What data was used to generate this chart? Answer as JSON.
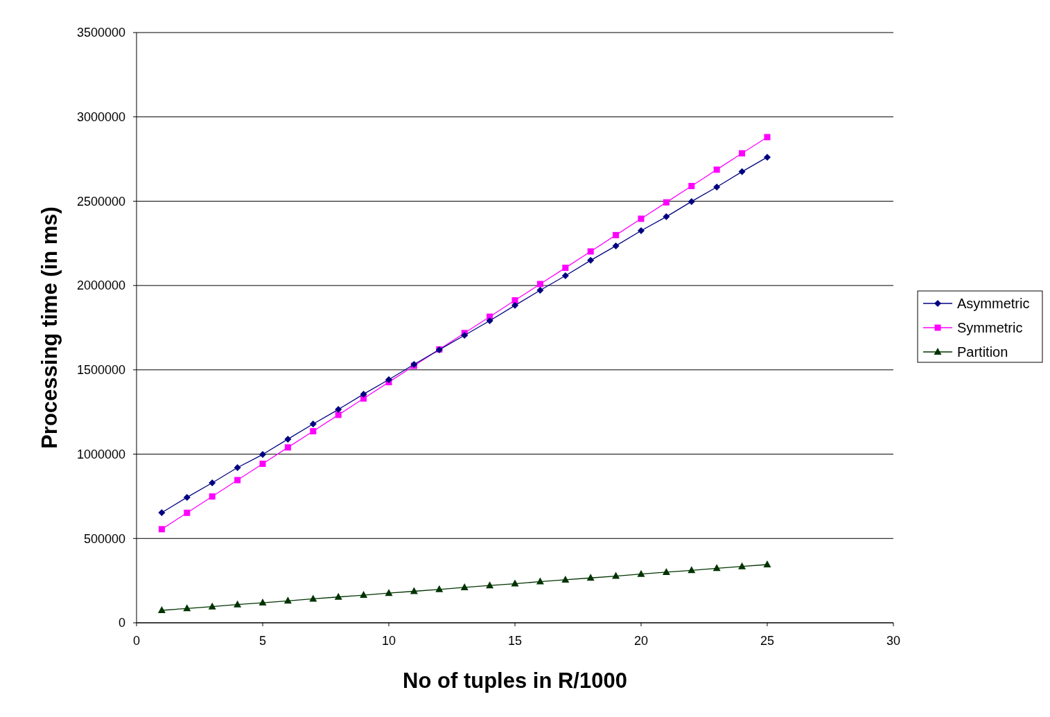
{
  "chart_data": {
    "type": "line",
    "xlabel": "No of tuples in R/1000",
    "ylabel": "Processing time (in ms)",
    "x": [
      1,
      2,
      3,
      4,
      5,
      6,
      7,
      8,
      9,
      10,
      11,
      12,
      13,
      14,
      15,
      16,
      17,
      18,
      19,
      20,
      21,
      22,
      23,
      24,
      25
    ],
    "series": [
      {
        "name": "Asymmetric",
        "color": "#000080",
        "marker": "diamond",
        "values": [
          653000,
          744000,
          830000,
          920000,
          998000,
          1089000,
          1179000,
          1265000,
          1356000,
          1442000,
          1532000,
          1619000,
          1705000,
          1791000,
          1882000,
          1972000,
          2058000,
          2149000,
          2235000,
          2325000,
          2408000,
          2498000,
          2584000,
          2675000,
          2761000
        ]
      },
      {
        "name": "Symmetric",
        "color": "#ff00ff",
        "marker": "square",
        "values": [
          555000,
          652000,
          749000,
          846000,
          943000,
          1040000,
          1136000,
          1233000,
          1330000,
          1427000,
          1524000,
          1621000,
          1718000,
          1815000,
          1912000,
          2009000,
          2105000,
          2202000,
          2299000,
          2396000,
          2493000,
          2590000,
          2687000,
          2784000,
          2880000
        ]
      },
      {
        "name": "Partition",
        "color": "#003300",
        "marker": "triangle",
        "values": [
          74000,
          85000,
          96000,
          108000,
          119000,
          130000,
          142000,
          153000,
          164000,
          176000,
          187000,
          198000,
          210000,
          221000,
          232000,
          244000,
          255000,
          266000,
          277000,
          289000,
          300000,
          311000,
          323000,
          334000,
          345000
        ]
      }
    ],
    "xlim": [
      0,
      30
    ],
    "xticks": [
      0,
      5,
      10,
      15,
      20,
      25,
      30
    ],
    "ylim": [
      0,
      3500000
    ],
    "yticks": [
      0,
      500000,
      1000000,
      1500000,
      2000000,
      2500000,
      3000000,
      3500000
    ],
    "grid": "y",
    "legend": "right"
  }
}
